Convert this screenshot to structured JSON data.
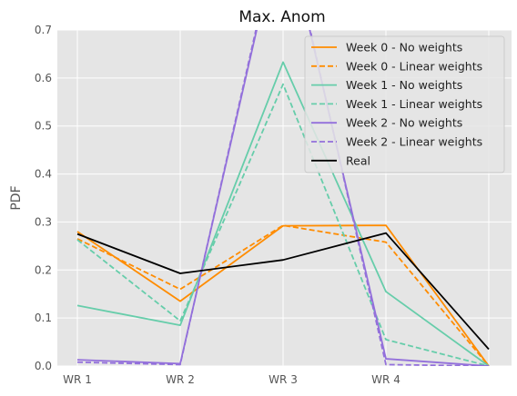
{
  "chart_data": {
    "type": "line",
    "title": "Max. Anom",
    "xlabel": "",
    "ylabel": "PDF",
    "categories": [
      "WR 1",
      "WR 2",
      "WR 3",
      "WR 4",
      ""
    ],
    "x_tick_labels": [
      "WR 1",
      "WR 2",
      "WR 3",
      "WR 4"
    ],
    "ylim": [
      0,
      0.7
    ],
    "y_ticks": [
      "0.0",
      "0.1",
      "0.2",
      "0.3",
      "0.4",
      "0.5",
      "0.6",
      "0.7"
    ],
    "grid": true,
    "legend_position": "top-right",
    "series": [
      {
        "name": "Week 0 - No weights",
        "color": "#ff8c00",
        "dash": "solid",
        "values": [
          0.28,
          0.135,
          0.292,
          0.293,
          0.0
        ]
      },
      {
        "name": "Week 0 - Linear weights",
        "color": "#ff8c00",
        "dash": "dashed",
        "values": [
          0.265,
          0.16,
          0.293,
          0.258,
          0.0
        ]
      },
      {
        "name": "Week 1 - No weights",
        "color": "#66cdaa",
        "dash": "solid",
        "values": [
          0.126,
          0.085,
          0.633,
          0.155,
          0.0
        ]
      },
      {
        "name": "Week 1 - Linear weights",
        "color": "#66cdaa",
        "dash": "dashed",
        "values": [
          0.263,
          0.094,
          0.587,
          0.055,
          0.0
        ]
      },
      {
        "name": "Week 2 - No weights",
        "color": "#9370db",
        "dash": "solid",
        "values": [
          0.013,
          0.005,
          0.94,
          0.015,
          0.0
        ]
      },
      {
        "name": "Week 2 - Linear weights",
        "color": "#9370db",
        "dash": "dashed",
        "values": [
          0.008,
          0.003,
          0.95,
          0.003,
          0.0
        ]
      },
      {
        "name": "Real",
        "color": "#000000",
        "dash": "solid",
        "values": [
          0.275,
          0.193,
          0.221,
          0.277,
          0.035
        ]
      }
    ]
  }
}
